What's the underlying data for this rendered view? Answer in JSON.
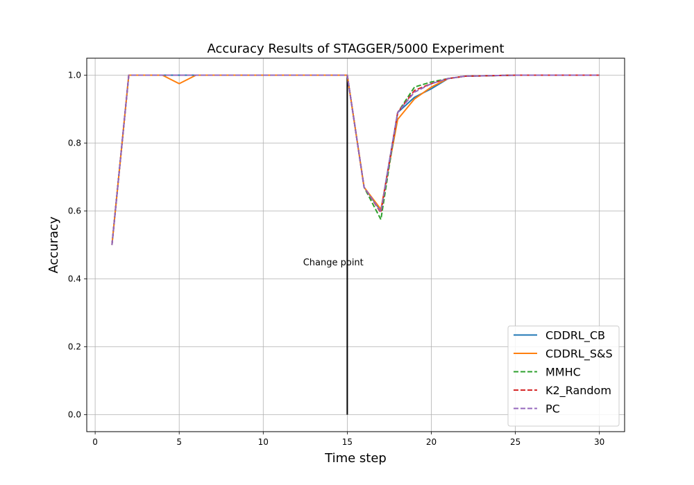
{
  "chart_data": {
    "type": "line",
    "title": "Accuracy Results of STAGGER/5000 Experiment",
    "xlabel": "Time step",
    "ylabel": "Accuracy",
    "xlim": [
      -0.5,
      31.5
    ],
    "ylim": [
      -0.05,
      1.05
    ],
    "xticks": [
      0,
      5,
      10,
      15,
      20,
      25,
      30
    ],
    "yticks": [
      0.0,
      0.2,
      0.4,
      0.6,
      0.8,
      1.0
    ],
    "xtick_labels": [
      "0",
      "5",
      "10",
      "15",
      "20",
      "25",
      "30"
    ],
    "ytick_labels": [
      "0.0",
      "0.2",
      "0.4",
      "0.6",
      "0.8",
      "1.0"
    ],
    "grid": true,
    "legend_position": "bottom-right",
    "x": [
      1,
      2,
      3,
      4,
      5,
      6,
      7,
      8,
      9,
      10,
      11,
      12,
      13,
      14,
      15,
      16,
      17,
      18,
      19,
      20,
      21,
      22,
      23,
      24,
      25,
      26,
      27,
      28,
      29,
      30
    ],
    "series": [
      {
        "name": "CDDRL_CB",
        "color": "#1f77b4",
        "dash": "solid",
        "values": [
          0.5,
          1.0,
          1.0,
          1.0,
          1.0,
          1.0,
          1.0,
          1.0,
          1.0,
          1.0,
          1.0,
          1.0,
          1.0,
          1.0,
          1.0,
          0.67,
          0.6,
          0.89,
          0.935,
          0.96,
          0.99,
          0.997,
          0.998,
          0.999,
          1.0,
          1.0,
          1.0,
          1.0,
          1.0,
          1.0
        ]
      },
      {
        "name": "CDDRL_S&S",
        "color": "#ff7f0e",
        "dash": "solid",
        "values": [
          0.5,
          1.0,
          1.0,
          1.0,
          0.975,
          1.0,
          1.0,
          1.0,
          1.0,
          1.0,
          1.0,
          1.0,
          1.0,
          1.0,
          1.0,
          0.67,
          0.605,
          0.87,
          0.93,
          0.965,
          0.99,
          0.997,
          0.998,
          0.999,
          1.0,
          1.0,
          1.0,
          1.0,
          1.0,
          1.0
        ]
      },
      {
        "name": "MMHC",
        "color": "#2ca02c",
        "dash": "dashed",
        "values": [
          0.5,
          1.0,
          1.0,
          1.0,
          1.0,
          1.0,
          1.0,
          1.0,
          1.0,
          1.0,
          1.0,
          1.0,
          1.0,
          1.0,
          1.0,
          0.67,
          0.575,
          0.89,
          0.965,
          0.98,
          0.99,
          0.997,
          0.998,
          0.999,
          1.0,
          1.0,
          1.0,
          1.0,
          1.0,
          1.0
        ]
      },
      {
        "name": "K2_Random",
        "color": "#d62728",
        "dash": "dashed",
        "values": [
          0.5,
          1.0,
          1.0,
          1.0,
          1.0,
          1.0,
          1.0,
          1.0,
          1.0,
          1.0,
          1.0,
          1.0,
          1.0,
          1.0,
          1.0,
          0.67,
          0.595,
          0.89,
          0.955,
          0.975,
          0.99,
          0.997,
          0.998,
          0.999,
          1.0,
          1.0,
          1.0,
          1.0,
          1.0,
          1.0
        ]
      },
      {
        "name": "PC",
        "color": "#9467bd",
        "dash": "dashed",
        "values": [
          0.5,
          1.0,
          1.0,
          1.0,
          1.0,
          1.0,
          1.0,
          1.0,
          1.0,
          1.0,
          1.0,
          1.0,
          1.0,
          1.0,
          1.0,
          0.67,
          0.598,
          0.89,
          0.95,
          0.975,
          0.99,
          0.997,
          0.998,
          0.999,
          1.0,
          1.0,
          1.0,
          1.0,
          1.0,
          1.0
        ]
      }
    ],
    "annotation": {
      "text": "Change point",
      "x": 14.6,
      "y": 0.45
    },
    "change_point": {
      "x": 15,
      "y_from": 0.0,
      "y_to": 1.0,
      "color": "#000000"
    }
  }
}
